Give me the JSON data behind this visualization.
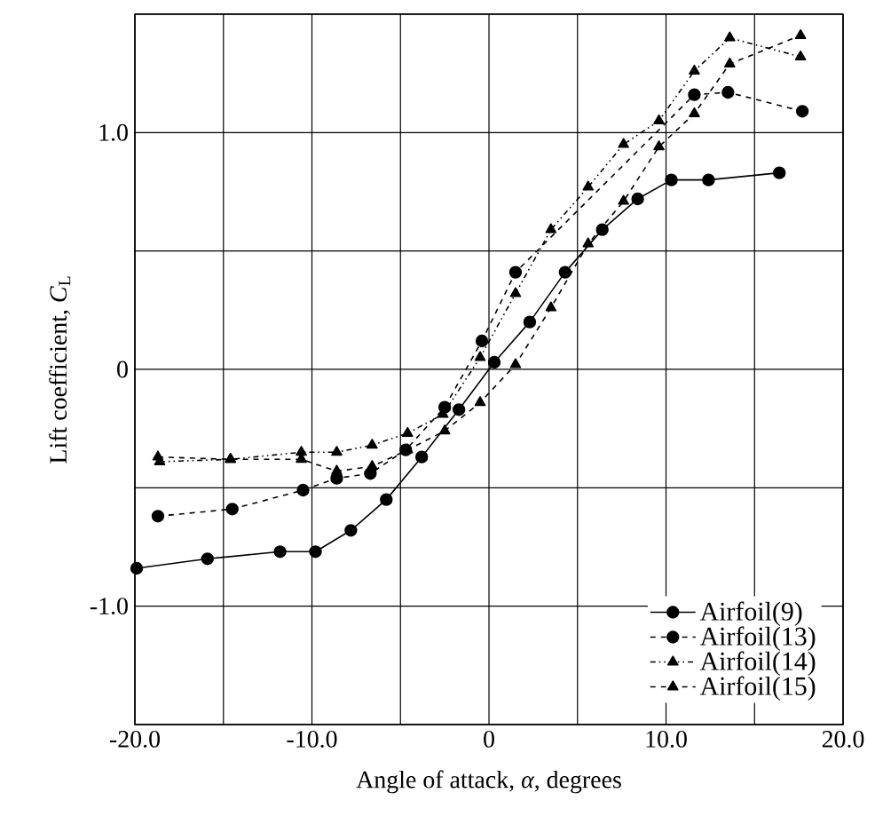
{
  "chart_data": {
    "type": "line",
    "xlabel": "Angle of attack,   *α*,   degrees",
    "ylabel": "Lift coefficient,   *C*$_{L}$",
    "xlim": [
      -20,
      20
    ],
    "ylim": [
      -1.5,
      1.5
    ],
    "xticks": [
      {
        "value": -20,
        "label": "-20.0"
      },
      {
        "value": -15,
        "label": null
      },
      {
        "value": -10,
        "label": "-10.0"
      },
      {
        "value": -5,
        "label": null
      },
      0,
      {
        "value": 5,
        "label": null
      },
      {
        "value": 10,
        "label": "10.0"
      },
      {
        "value": 15,
        "label": null
      },
      {
        "value": 20,
        "label": "20.0"
      }
    ],
    "yticks": [
      {
        "value": -1.5,
        "label": null
      },
      {
        "value": -1,
        "label": "-1.0"
      },
      {
        "value": -0.5,
        "label": null
      },
      0,
      {
        "value": 0.5,
        "label": null
      },
      {
        "value": 1,
        "label": "1.0"
      },
      {
        "value": 1.5,
        "label": null
      }
    ],
    "grid": true,
    "legend": "bottom right",
    "series": [
      {
        "name": "Airfoil(9)",
        "color": "#000000",
        "marker": "circle",
        "line_style": "solid",
        "x": [
          -19.9,
          -15.9,
          -11.8,
          -9.8,
          -7.8,
          -5.8,
          -3.8,
          -1.7,
          0.3,
          2.3,
          4.3,
          6.4,
          8.4,
          10.3,
          12.4,
          16.4
        ],
        "values": [
          -0.84,
          -0.8,
          -0.77,
          -0.77,
          -0.68,
          -0.55,
          -0.37,
          -0.17,
          0.03,
          0.2,
          0.41,
          0.59,
          0.72,
          0.8,
          0.8,
          0.83
        ]
      },
      {
        "name": "Airfoil(13)",
        "color": "#000000",
        "marker": "circle",
        "line_style": "dashed",
        "x": [
          -18.7,
          -14.5,
          -10.5,
          -8.6,
          -6.7,
          -4.7,
          -2.5,
          -0.4,
          1.5,
          11.6,
          13.5,
          17.7
        ],
        "values": [
          -0.62,
          -0.59,
          -0.51,
          -0.46,
          -0.44,
          -0.34,
          -0.16,
          0.12,
          0.41,
          1.16,
          1.17,
          1.09
        ]
      },
      {
        "name": "Airfoil(14)",
        "color": "#000000",
        "marker": "triangle",
        "line_style": "dotted",
        "x": [
          -18.6,
          -14.6,
          -10.6,
          -8.6,
          -6.6,
          -4.6,
          -2.6,
          -0.5,
          1.5,
          3.5,
          5.6,
          7.6,
          9.6,
          11.6,
          13.6,
          17.6
        ],
        "values": [
          -0.39,
          -0.38,
          -0.35,
          -0.35,
          -0.32,
          -0.27,
          -0.19,
          0.05,
          0.32,
          0.59,
          0.77,
          0.95,
          1.05,
          1.26,
          1.4,
          1.32
        ]
      },
      {
        "name": "Airfoil(15)",
        "color": "#000000",
        "marker": "triangle",
        "line_style": "dashed",
        "x": [
          -18.7,
          -14.6,
          -10.6,
          -8.6,
          -6.6,
          -4.6,
          -2.5,
          -0.5,
          1.5,
          3.5,
          5.6,
          7.6,
          9.6,
          11.6,
          13.6,
          17.6
        ],
        "values": [
          -0.37,
          -0.38,
          -0.38,
          -0.43,
          -0.41,
          -0.34,
          -0.26,
          -0.14,
          0.02,
          0.26,
          0.53,
          0.71,
          0.94,
          1.08,
          1.29,
          1.41
        ]
      }
    ]
  }
}
